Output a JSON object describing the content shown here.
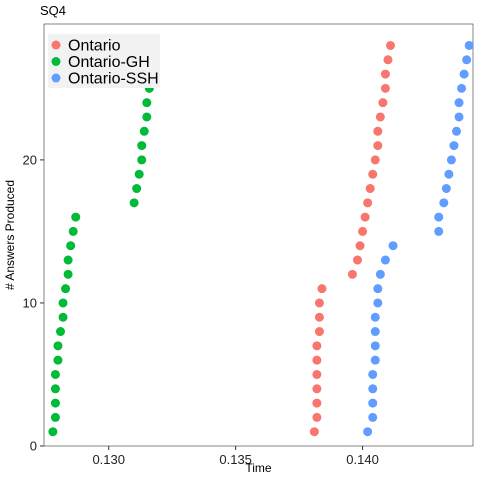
{
  "chart_data": {
    "type": "scatter",
    "title": "SQ4",
    "xlabel": "Time",
    "ylabel": "# Answers Produced",
    "xlim": [
      0.12745,
      0.14435
    ],
    "ylim": [
      0,
      29.5
    ],
    "x_ticks": [
      0.13,
      0.135,
      0.14
    ],
    "x_tick_labels": [
      "0.130",
      "0.135",
      "0.140"
    ],
    "y_ticks": [
      0,
      10,
      20
    ],
    "y_tick_labels": [
      "0",
      "10",
      "20"
    ],
    "grid": false,
    "legend_position": "top-left",
    "series": [
      {
        "name": "Ontario",
        "color": "#F8766D",
        "points": [
          [
            0.1381,
            1
          ],
          [
            0.1382,
            2
          ],
          [
            0.1382,
            3
          ],
          [
            0.1382,
            4
          ],
          [
            0.1382,
            5
          ],
          [
            0.1382,
            6
          ],
          [
            0.1382,
            7
          ],
          [
            0.1383,
            8
          ],
          [
            0.1383,
            9
          ],
          [
            0.1383,
            10
          ],
          [
            0.1384,
            11
          ],
          [
            0.1396,
            12
          ],
          [
            0.1398,
            13
          ],
          [
            0.1399,
            14
          ],
          [
            0.14,
            15
          ],
          [
            0.1401,
            16
          ],
          [
            0.1402,
            17
          ],
          [
            0.1403,
            18
          ],
          [
            0.1404,
            19
          ],
          [
            0.1405,
            20
          ],
          [
            0.1406,
            21
          ],
          [
            0.1406,
            22
          ],
          [
            0.1407,
            23
          ],
          [
            0.1408,
            24
          ],
          [
            0.1409,
            25
          ],
          [
            0.1409,
            26
          ],
          [
            0.141,
            27
          ],
          [
            0.1411,
            28
          ]
        ]
      },
      {
        "name": "Ontario-GH",
        "color": "#00BA38",
        "points": [
          [
            0.1278,
            1
          ],
          [
            0.1279,
            2
          ],
          [
            0.1279,
            3
          ],
          [
            0.1279,
            4
          ],
          [
            0.1279,
            5
          ],
          [
            0.128,
            6
          ],
          [
            0.128,
            7
          ],
          [
            0.1281,
            8
          ],
          [
            0.1282,
            9
          ],
          [
            0.1282,
            10
          ],
          [
            0.1283,
            11
          ],
          [
            0.1284,
            12
          ],
          [
            0.1284,
            13
          ],
          [
            0.1285,
            14
          ],
          [
            0.1286,
            15
          ],
          [
            0.1287,
            16
          ],
          [
            0.131,
            17
          ],
          [
            0.1311,
            18
          ],
          [
            0.1312,
            19
          ],
          [
            0.1313,
            20
          ],
          [
            0.1313,
            21
          ],
          [
            0.1314,
            22
          ],
          [
            0.1315,
            23
          ],
          [
            0.1315,
            24
          ],
          [
            0.1316,
            25
          ],
          [
            0.1317,
            26
          ],
          [
            0.1317,
            27
          ],
          [
            0.1318,
            28
          ]
        ]
      },
      {
        "name": "Ontario-SSH",
        "color": "#619CFF",
        "points": [
          [
            0.1402,
            1
          ],
          [
            0.1404,
            2
          ],
          [
            0.1404,
            3
          ],
          [
            0.1404,
            4
          ],
          [
            0.1404,
            5
          ],
          [
            0.1405,
            6
          ],
          [
            0.1405,
            7
          ],
          [
            0.1405,
            8
          ],
          [
            0.1405,
            9
          ],
          [
            0.1406,
            10
          ],
          [
            0.1406,
            11
          ],
          [
            0.1407,
            12
          ],
          [
            0.1409,
            13
          ],
          [
            0.1412,
            14
          ],
          [
            0.143,
            15
          ],
          [
            0.143,
            16
          ],
          [
            0.1432,
            17
          ],
          [
            0.1433,
            18
          ],
          [
            0.1434,
            19
          ],
          [
            0.1435,
            20
          ],
          [
            0.1436,
            21
          ],
          [
            0.1437,
            22
          ],
          [
            0.1438,
            23
          ],
          [
            0.1438,
            24
          ],
          [
            0.1439,
            25
          ],
          [
            0.144,
            26
          ],
          [
            0.1441,
            27
          ],
          [
            0.1442,
            28
          ]
        ]
      }
    ]
  }
}
